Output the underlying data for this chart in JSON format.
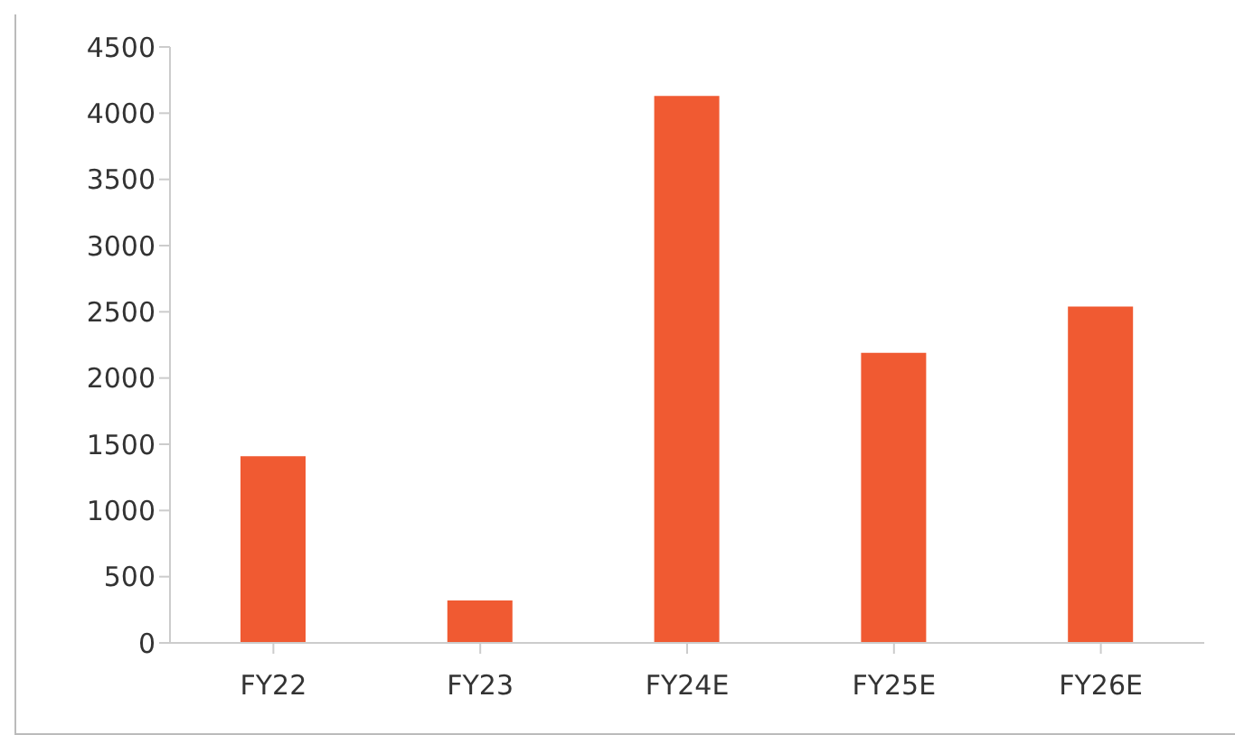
{
  "chart_data": {
    "type": "bar",
    "categories": [
      "FY22",
      "FY23",
      "FY24E",
      "FY25E",
      "FY26E"
    ],
    "values": [
      1410,
      320,
      4130,
      2190,
      2540
    ],
    "color": "#f05a32",
    "ylim": [
      0,
      4500
    ],
    "yticks": [
      0,
      500,
      1000,
      1500,
      2000,
      2500,
      3000,
      3500,
      4000,
      4500
    ],
    "grid": false,
    "legend": false
  }
}
